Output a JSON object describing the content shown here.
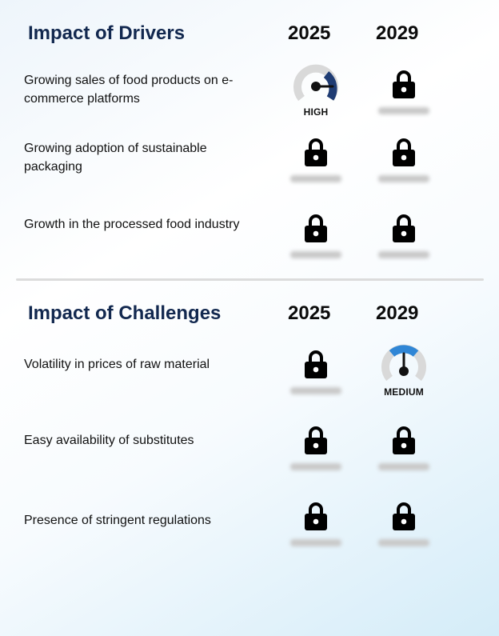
{
  "drivers": {
    "title": "Impact of Drivers",
    "year1": "2025",
    "year2": "2029",
    "rows": [
      {
        "label": "Growing sales of food products on e-commerce platforms",
        "y2025": {
          "gauge": "HIGH",
          "level": "high",
          "color": "#1f3c73"
        },
        "y2029": "locked"
      },
      {
        "label": "Growing adoption of sustainable packaging",
        "y2025": "locked",
        "y2029": "locked"
      },
      {
        "label": "Growth in the processed food industry",
        "y2025": "locked",
        "y2029": "locked"
      }
    ]
  },
  "challenges": {
    "title": "Impact of Challenges",
    "year1": "2025",
    "year2": "2029",
    "rows": [
      {
        "label": "Volatility in prices of raw material",
        "y2025": "locked",
        "y2029": {
          "gauge": "MEDIUM",
          "level": "medium",
          "color": "#2f86d6"
        }
      },
      {
        "label": "Easy availability of substitutes",
        "y2025": "locked",
        "y2029": "locked"
      },
      {
        "label": "Presence of stringent regulations",
        "y2025": "locked",
        "y2029": "locked"
      }
    ]
  },
  "icons": {
    "locked": "lock-icon",
    "gauge": "gauge-icon"
  }
}
